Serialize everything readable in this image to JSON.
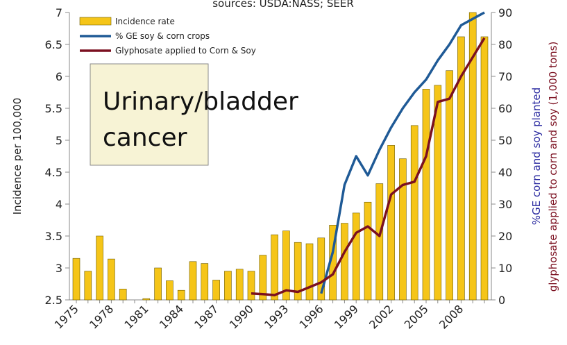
{
  "chart_data": {
    "type": "bar",
    "title": "sources: USDA:NASS; SEER",
    "annotation": [
      "Urinary/bladder",
      "cancer"
    ],
    "ylabel": "Incidence per 100,000",
    "y2label": [
      "%GE corn and soy planted",
      "glyphosate applied to corn and soy (1,000 tons)"
    ],
    "categories": [
      "1975",
      null,
      null,
      "1978",
      null,
      null,
      "1981",
      null,
      null,
      "1984",
      null,
      null,
      "1987",
      null,
      null,
      "1990",
      null,
      null,
      "1993",
      null,
      null,
      "1996",
      null,
      null,
      "1999",
      null,
      null,
      "2002",
      null,
      null,
      "2005",
      null,
      null,
      "2008",
      null,
      null
    ],
    "series": [
      {
        "name": "Incidence rate",
        "color": "#f5c518",
        "values": [
          3.15,
          2.95,
          3.5,
          3.14,
          2.67,
          null,
          2.52,
          3.0,
          2.8,
          2.65,
          3.1,
          3.07,
          2.81,
          2.95,
          2.98,
          2.95,
          3.2,
          3.52,
          3.58,
          3.4,
          3.38,
          3.47,
          3.67,
          3.7,
          3.86,
          4.03,
          4.32,
          4.92,
          4.71,
          5.23,
          5.8,
          5.86,
          6.09,
          6.62,
          7.0,
          6.62
        ]
      },
      {
        "name": "% GE soy & corn crops",
        "color": "#1f5a96",
        "axis": "y2",
        "values": [
          null,
          null,
          null,
          null,
          null,
          null,
          null,
          null,
          null,
          null,
          null,
          null,
          null,
          null,
          null,
          null,
          null,
          null,
          null,
          null,
          null,
          2,
          15,
          36,
          45,
          39,
          47,
          54,
          60,
          65,
          69,
          75,
          80,
          86,
          88,
          90
        ]
      },
      {
        "name": "Glyphosate applied to Corn & Soy",
        "color": "#7b1020",
        "axis": "y2",
        "values": [
          null,
          null,
          null,
          null,
          null,
          null,
          null,
          null,
          null,
          null,
          null,
          null,
          null,
          null,
          null,
          2,
          1.8,
          1.5,
          3,
          2.5,
          4,
          5.5,
          8,
          15,
          21,
          23,
          20,
          33,
          36,
          37,
          45,
          62,
          63,
          70,
          76,
          82
        ]
      }
    ],
    "ylim": [
      2.5,
      7
    ],
    "yticks": [
      2.5,
      3,
      3.5,
      4,
      4.5,
      5,
      5.5,
      6,
      6.5,
      7
    ],
    "y2lim": [
      0,
      90
    ],
    "y2ticks": [
      0,
      10,
      20,
      30,
      40,
      50,
      60,
      70,
      80,
      90
    ]
  }
}
